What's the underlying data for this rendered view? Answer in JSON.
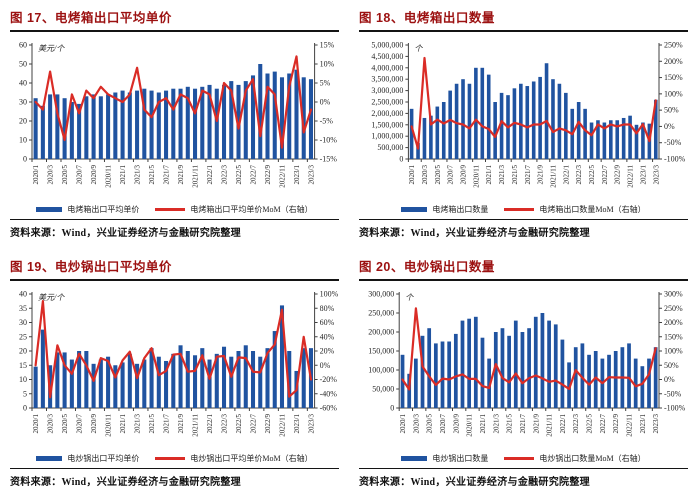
{
  "palette": {
    "bar_color": "#2053A0",
    "line_color": "#DA2C26",
    "title_color": "#9C1111",
    "rule_color": "#141414",
    "axis_color": "#404040",
    "text_color": "#262626"
  },
  "chart_data": [
    {
      "type": "bar",
      "title": "图 17、电烤箱出口平均单价",
      "source": "资料来源：Wind，兴业证券经济与金融研究院整理",
      "legend_position": "bottom",
      "grid": false,
      "left_axis": {
        "unit": "美元/个",
        "min": 0,
        "max": 60,
        "ticks": [
          "0",
          "10",
          "20",
          "30",
          "40",
          "50",
          "60"
        ]
      },
      "right_axis": {
        "min": -15,
        "max": 15,
        "ticks": [
          "-15%",
          "-10%",
          "-5%",
          "0%",
          "5%",
          "10%",
          "15%"
        ]
      },
      "categories": [
        "2020/1",
        "2020/2",
        "2020/3",
        "2020/4",
        "2020/5",
        "2020/6",
        "2020/7",
        "2020/8",
        "2020/9",
        "2020/10",
        "2020/11",
        "2020/12",
        "2021/1",
        "2021/2",
        "2021/3",
        "2021/4",
        "2021/5",
        "2021/6",
        "2021/7",
        "2021/8",
        "2021/9",
        "2021/10",
        "2021/11",
        "2021/12",
        "2022/1",
        "2022/2",
        "2022/3",
        "2022/4",
        "2022/5",
        "2022/6",
        "2022/7",
        "2022/8",
        "2022/9",
        "2022/10",
        "2022/11",
        "2022/12",
        "2023/1",
        "2023/2",
        "2023/3"
      ],
      "x_tick_labels": [
        "2020/1",
        "2020/3",
        "2020/5",
        "2020/7",
        "2020/9",
        "2020/11",
        "2021/1",
        "2021/3",
        "2021/5",
        "2021/7",
        "2021/9",
        "2021/11",
        "2022/1",
        "2022/3",
        "2022/5",
        "2022/7",
        "2022/9",
        "2022/11",
        "2023/1",
        "2023/3"
      ],
      "series": [
        {
          "name": "电烤箱出口平均单价",
          "type": "bar",
          "axis": "left",
          "values": [
            32,
            28,
            34,
            34,
            32,
            30,
            29,
            33,
            34,
            33,
            34,
            35,
            36,
            35,
            36,
            37,
            36,
            35,
            36,
            37,
            37,
            38,
            37,
            38,
            39,
            37,
            39,
            41,
            39,
            41,
            44,
            50,
            45,
            46,
            43,
            45,
            47,
            43,
            42
          ]
        },
        {
          "name": "电烤箱出口平均单价MoM（右轴）",
          "type": "line",
          "axis": "right",
          "values": [
            0,
            -2,
            8,
            -3,
            -10,
            2,
            -3,
            3,
            1,
            4,
            2,
            1,
            0,
            2,
            9,
            -2,
            -4,
            0,
            1,
            -2,
            2,
            1,
            -3,
            3,
            2,
            -5,
            5,
            3,
            -7,
            3,
            6,
            -9,
            4,
            2,
            -12,
            4,
            12,
            -8,
            -2
          ]
        }
      ]
    },
    {
      "type": "bar",
      "title": "图 18、电烤箱出口数量",
      "source": "资料来源：Wind，兴业证券经济与金融研究院整理",
      "legend_position": "bottom",
      "grid": false,
      "left_axis": {
        "unit": "个",
        "min": 0,
        "max": 5000000,
        "ticks": [
          "0",
          "500,000",
          "1,000,000",
          "1,500,000",
          "2,000,000",
          "2,500,000",
          "3,000,000",
          "3,500,000",
          "4,000,000",
          "4,500,000",
          "5,000,000"
        ]
      },
      "right_axis": {
        "min": -100,
        "max": 250,
        "ticks": [
          "-100%",
          "-50%",
          "0%",
          "50%",
          "100%",
          "150%",
          "200%",
          "250%"
        ]
      },
      "categories": [
        "2020/1",
        "2020/2",
        "2020/3",
        "2020/4",
        "2020/5",
        "2020/6",
        "2020/7",
        "2020/8",
        "2020/9",
        "2020/10",
        "2020/11",
        "2020/12",
        "2021/1",
        "2021/2",
        "2021/3",
        "2021/4",
        "2021/5",
        "2021/6",
        "2021/7",
        "2021/8",
        "2021/9",
        "2021/10",
        "2021/11",
        "2021/12",
        "2022/1",
        "2022/2",
        "2022/3",
        "2022/4",
        "2022/5",
        "2022/6",
        "2022/7",
        "2022/8",
        "2022/9",
        "2022/10",
        "2022/11",
        "2022/12",
        "2023/1",
        "2023/2",
        "2023/3"
      ],
      "x_tick_labels": [
        "2020/1",
        "2020/3",
        "2020/5",
        "2020/7",
        "2020/9",
        "2020/11",
        "2021/1",
        "2021/3",
        "2021/5",
        "2021/7",
        "2021/9",
        "2021/11",
        "2022/1",
        "2022/3",
        "2022/5",
        "2022/7",
        "2022/9",
        "2022/11",
        "2023/1",
        "2023/3"
      ],
      "series": [
        {
          "name": "电烤箱出口数量",
          "type": "bar",
          "axis": "left",
          "values": [
            2200000,
            700000,
            1800000,
            1900000,
            2300000,
            2500000,
            3000000,
            3300000,
            3500000,
            3300000,
            4000000,
            4000000,
            3700000,
            2500000,
            2900000,
            2800000,
            3100000,
            3300000,
            3200000,
            3400000,
            3600000,
            4200000,
            3500000,
            3300000,
            2900000,
            2200000,
            2500000,
            2200000,
            1600000,
            1700000,
            1600000,
            1700000,
            1700000,
            1800000,
            1900000,
            1500000,
            1600000,
            1550000,
            2600000
          ]
        },
        {
          "name": "电烤箱出口数量MoM（右轴）",
          "type": "line",
          "axis": "right",
          "values": [
            0,
            -68,
            210,
            6,
            21,
            9,
            20,
            10,
            6,
            -6,
            21,
            0,
            -8,
            -32,
            16,
            -3,
            11,
            6,
            -3,
            6,
            6,
            17,
            -17,
            -6,
            -12,
            -24,
            14,
            -12,
            -27,
            6,
            -6,
            6,
            0,
            6,
            6,
            -21,
            7,
            -45,
            80
          ]
        }
      ]
    },
    {
      "type": "bar",
      "title": "图 19、电炒锅出口平均单价",
      "source": "资料来源：Wind，兴业证券经济与金融研究院整理",
      "legend_position": "bottom",
      "grid": false,
      "left_axis": {
        "unit": "美元/个",
        "min": 0,
        "max": 40,
        "ticks": [
          "0",
          "5",
          "10",
          "15",
          "20",
          "25",
          "30",
          "35",
          "40"
        ]
      },
      "right_axis": {
        "min": -60,
        "max": 100,
        "ticks": [
          "-60%",
          "-40%",
          "-20%",
          "0%",
          "20%",
          "40%",
          "60%",
          "80%",
          "100%"
        ]
      },
      "categories": [
        "2020/1",
        "2020/2",
        "2020/3",
        "2020/4",
        "2020/5",
        "2020/6",
        "2020/7",
        "2020/8",
        "2020/9",
        "2020/10",
        "2020/11",
        "2020/12",
        "2021/1",
        "2021/2",
        "2021/3",
        "2021/4",
        "2021/5",
        "2021/6",
        "2021/7",
        "2021/8",
        "2021/9",
        "2021/10",
        "2021/11",
        "2021/12",
        "2022/1",
        "2022/2",
        "2022/3",
        "2022/4",
        "2022/5",
        "2022/6",
        "2022/7",
        "2022/8",
        "2022/9",
        "2022/10",
        "2022/11",
        "2022/12",
        "2023/1",
        "2023/2",
        "2023/3"
      ],
      "x_tick_labels": [
        "2020/1",
        "2020/3",
        "2020/5",
        "2020/7",
        "2020/9",
        "2020/11",
        "2021/1",
        "2021/3",
        "2021/5",
        "2021/7",
        "2021/9",
        "2021/11",
        "2022/1",
        "2022/3",
        "2022/5",
        "2022/7",
        "2022/9",
        "2022/11",
        "2023/1",
        "2023/3"
      ],
      "series": [
        {
          "name": "电炒锅出口平均单价",
          "type": "bar",
          "axis": "left",
          "values": [
            14.5,
            27.5,
            15,
            19.5,
            19.5,
            17,
            20,
            20,
            15.5,
            17,
            18,
            15,
            16,
            19,
            15.5,
            17,
            21,
            18,
            16.5,
            19,
            22,
            20,
            18.5,
            21,
            17,
            19,
            21.5,
            18,
            20,
            22,
            20,
            18,
            21,
            27,
            36,
            20,
            13,
            21,
            21
          ]
        },
        {
          "name": "电炒锅出口平均单价MoM（右轴）",
          "type": "line",
          "axis": "right",
          "values": [
            0,
            90,
            -45,
            28,
            0,
            -12,
            16,
            0,
            -22,
            10,
            6,
            -17,
            7,
            19,
            -18,
            10,
            24,
            -14,
            -8,
            15,
            16,
            -9,
            -8,
            14,
            -19,
            12,
            13,
            -16,
            11,
            10,
            -9,
            -10,
            17,
            29,
            78,
            -44,
            -35,
            40,
            -20
          ]
        }
      ]
    },
    {
      "type": "bar",
      "title": "图 20、电炒锅出口数量",
      "source": "资料来源：Wind，兴业证券经济与金融研究院整理",
      "legend_position": "bottom",
      "grid": false,
      "left_axis": {
        "unit": "个",
        "min": 0,
        "max": 300000,
        "ticks": [
          "0",
          "50,000",
          "100,000",
          "150,000",
          "200,000",
          "250,000",
          "300,000"
        ]
      },
      "right_axis": {
        "min": -100,
        "max": 300,
        "ticks": [
          "-100%",
          "-50%",
          "0%",
          "50%",
          "100%",
          "150%",
          "200%",
          "250%",
          "300%"
        ]
      },
      "categories": [
        "2020/1",
        "2020/2",
        "2020/3",
        "2020/4",
        "2020/5",
        "2020/6",
        "2020/7",
        "2020/8",
        "2020/9",
        "2020/10",
        "2020/11",
        "2020/12",
        "2021/1",
        "2021/2",
        "2021/3",
        "2021/4",
        "2021/5",
        "2021/6",
        "2021/7",
        "2021/8",
        "2021/9",
        "2021/10",
        "2021/11",
        "2021/12",
        "2022/1",
        "2022/2",
        "2022/3",
        "2022/4",
        "2022/5",
        "2022/6",
        "2022/7",
        "2022/8",
        "2022/9",
        "2022/10",
        "2022/11",
        "2022/12",
        "2023/1",
        "2023/2",
        "2023/3"
      ],
      "x_tick_labels": [
        "2020/1",
        "2020/3",
        "2020/5",
        "2020/7",
        "2020/9",
        "2020/11",
        "2021/1",
        "2021/3",
        "2021/5",
        "2021/7",
        "2021/9",
        "2021/11",
        "2022/1",
        "2022/3",
        "2022/5",
        "2022/7",
        "2022/9",
        "2022/11",
        "2023/1",
        "2023/3"
      ],
      "series": [
        {
          "name": "电炒锅出口数量",
          "type": "bar",
          "axis": "left",
          "values": [
            140000,
            90000,
            130000,
            190000,
            210000,
            170000,
            175000,
            175000,
            195000,
            230000,
            235000,
            240000,
            185000,
            130000,
            200000,
            210000,
            190000,
            230000,
            200000,
            210000,
            240000,
            250000,
            230000,
            220000,
            180000,
            120000,
            160000,
            170000,
            140000,
            150000,
            130000,
            140000,
            150000,
            160000,
            170000,
            130000,
            110000,
            130000,
            160000
          ]
        },
        {
          "name": "电炒锅出口数量MoM（右轴）",
          "type": "line",
          "axis": "right",
          "values": [
            0,
            -35,
            250,
            46,
            11,
            -19,
            3,
            0,
            11,
            18,
            2,
            2,
            -23,
            -30,
            54,
            5,
            -10,
            21,
            -13,
            5,
            14,
            4,
            -8,
            -4,
            -18,
            -33,
            33,
            6,
            -18,
            7,
            -13,
            8,
            7,
            7,
            6,
            -24,
            -15,
            18,
            110
          ]
        }
      ]
    }
  ]
}
